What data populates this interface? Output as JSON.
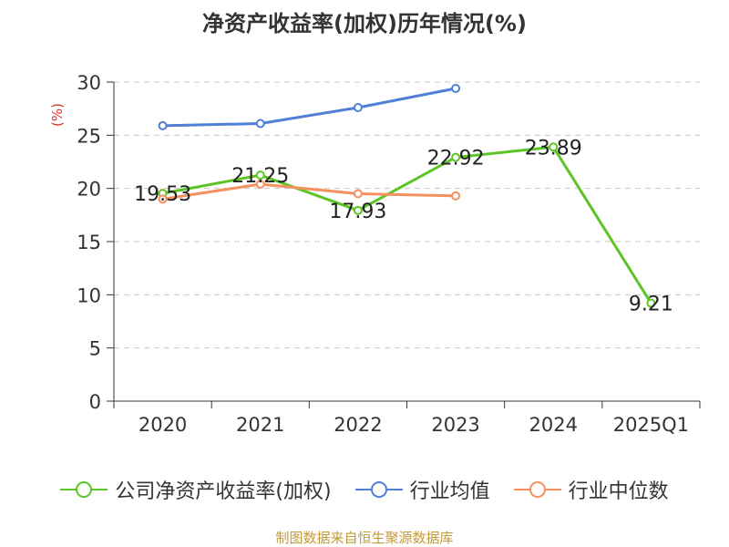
{
  "chart_data": {
    "type": "line",
    "title": "净资产收益率(加权)历年情况(%)",
    "ylabel": "(%)",
    "xlabel": "",
    "categories": [
      "2020",
      "2021",
      "2022",
      "2023",
      "2024",
      "2025Q1"
    ],
    "ylim": [
      0,
      30
    ],
    "yticks": [
      0,
      5,
      10,
      15,
      20,
      25,
      30
    ],
    "grid": true,
    "legend_position": "bottom",
    "series": [
      {
        "name": "公司净资产收益率(加权)",
        "color": "#5cc526",
        "values": [
          19.53,
          21.25,
          17.93,
          22.92,
          23.89,
          9.21
        ],
        "labels": [
          "19.53",
          "21.25",
          "17.93",
          "22.92",
          "23.89",
          "9.21"
        ]
      },
      {
        "name": "行业均值",
        "color": "#4f7fd6",
        "values": [
          25.9,
          26.1,
          27.6,
          29.4,
          null,
          null
        ]
      },
      {
        "name": "行业中位数",
        "color": "#f4915e",
        "values": [
          19.0,
          20.4,
          19.5,
          19.3,
          null,
          null
        ]
      }
    ]
  },
  "legend": {
    "items": [
      {
        "label": "公司净资产收益率(加权)",
        "color": "#5cc526"
      },
      {
        "label": "行业均值",
        "color": "#4f7fd6"
      },
      {
        "label": "行业中位数",
        "color": "#f4915e"
      }
    ]
  },
  "ylabel_color": "#d9312b",
  "source": "制图数据来自恒生聚源数据库"
}
